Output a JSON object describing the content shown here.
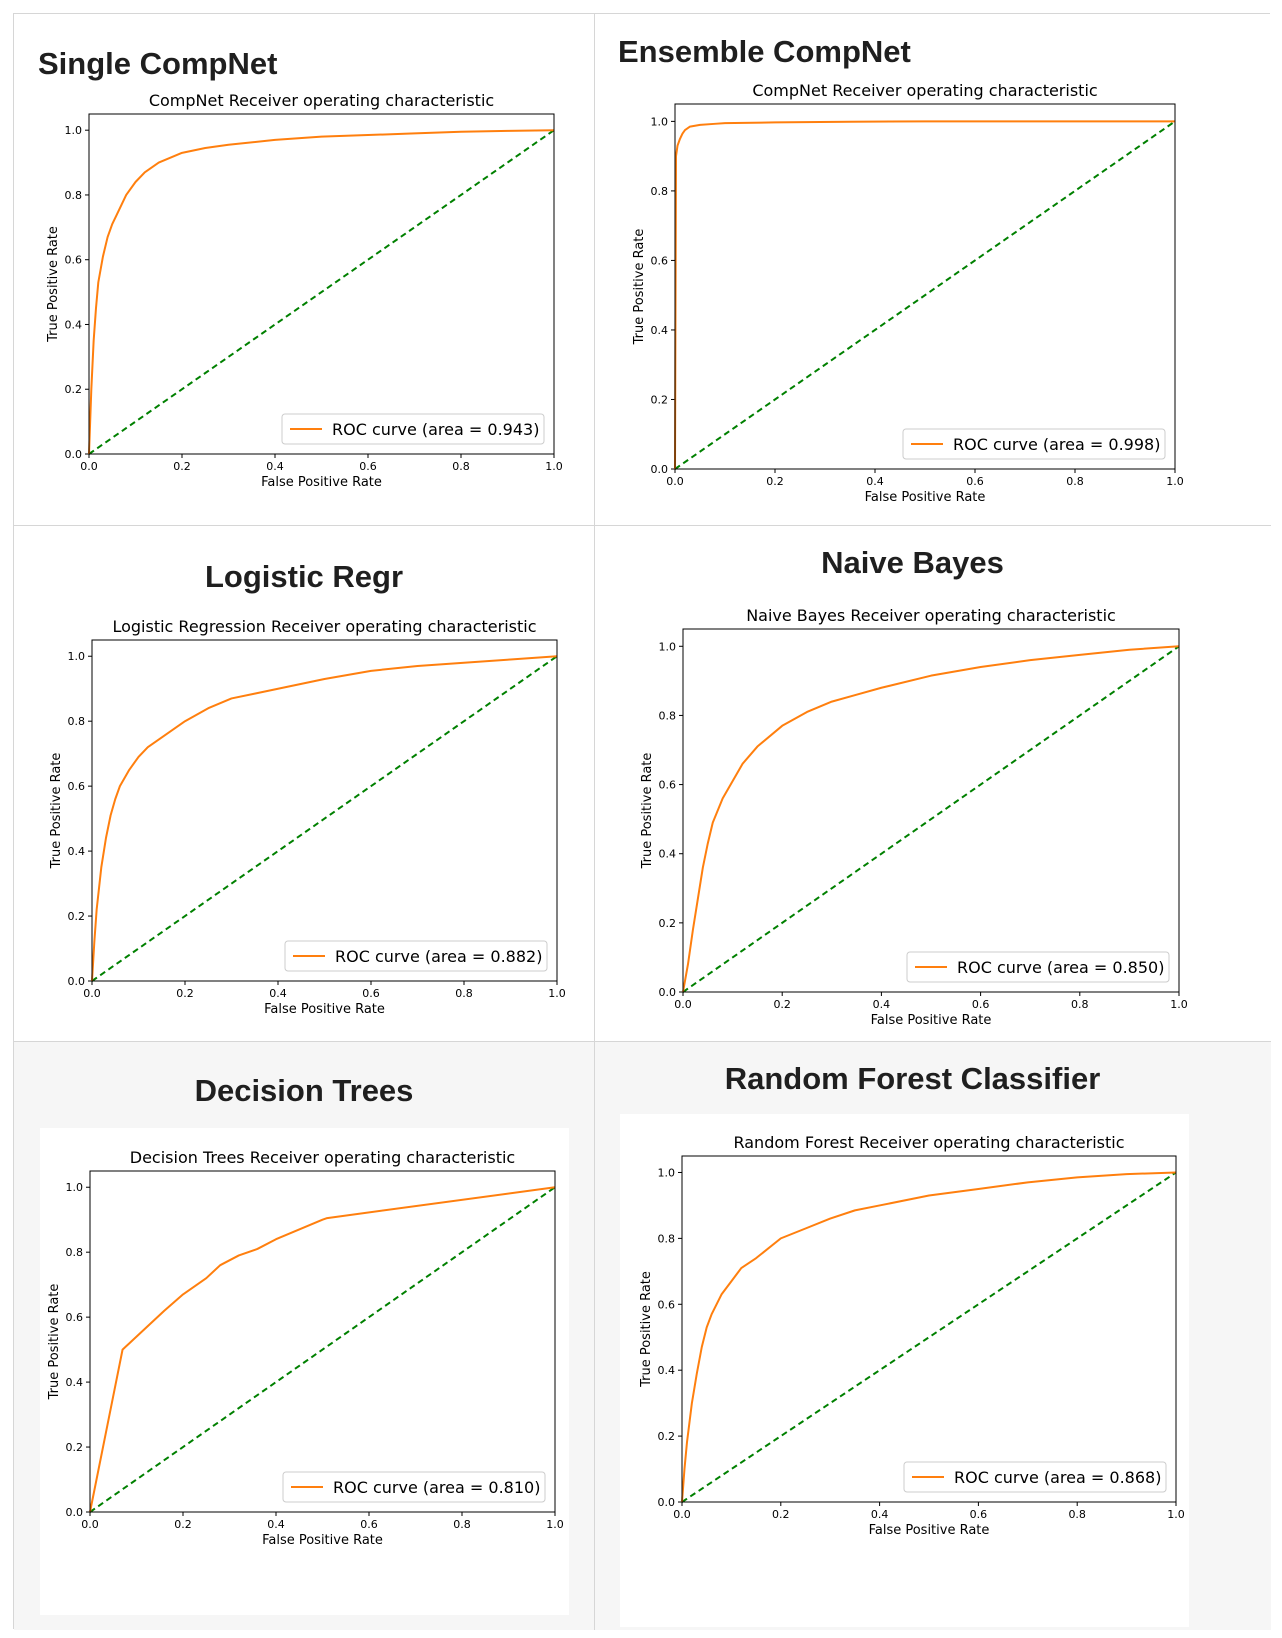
{
  "colors": {
    "roc": "#ff7f0e",
    "diagonal": "#008000",
    "frame": "#000000",
    "legend_border": "#cccccc"
  },
  "panels": [
    {
      "heading": "Single CompNet"
    },
    {
      "heading": "Ensemble CompNet"
    },
    {
      "heading": "Logistic Regr"
    },
    {
      "heading": "Naive Bayes"
    },
    {
      "heading": "Decision Trees"
    },
    {
      "heading": "Random Forest Classifier"
    }
  ],
  "chart_data": [
    {
      "type": "line",
      "title": "CompNet Receiver operating characteristic",
      "xlabel": "False Positive Rate",
      "ylabel": "True Positive Rate",
      "xlim": [
        0,
        1
      ],
      "ylim": [
        0,
        1.05
      ],
      "xticks": [
        "0.0",
        "0.2",
        "0.4",
        "0.6",
        "0.8",
        "1.0"
      ],
      "yticks": [
        "0.0",
        "0.2",
        "0.4",
        "0.6",
        "0.8",
        "1.0"
      ],
      "grid": false,
      "legend_position": "lower-right",
      "series": [
        {
          "name": "ROC curve (area = 0.943)",
          "x": [
            0,
            0.005,
            0.01,
            0.015,
            0.02,
            0.03,
            0.04,
            0.05,
            0.06,
            0.07,
            0.08,
            0.1,
            0.12,
            0.15,
            0.2,
            0.25,
            0.3,
            0.4,
            0.5,
            0.6,
            0.7,
            0.8,
            0.9,
            1.0
          ],
          "y": [
            0,
            0.2,
            0.35,
            0.45,
            0.53,
            0.61,
            0.67,
            0.71,
            0.74,
            0.77,
            0.8,
            0.84,
            0.87,
            0.9,
            0.93,
            0.945,
            0.955,
            0.97,
            0.98,
            0.985,
            0.99,
            0.995,
            0.998,
            1.0
          ]
        },
        {
          "name": "",
          "x": [
            0,
            1
          ],
          "y": [
            0,
            1
          ]
        }
      ]
    },
    {
      "type": "line",
      "title": "CompNet Receiver operating characteristic",
      "xlabel": "False Positive Rate",
      "ylabel": "True Positive Rate",
      "xlim": [
        0,
        1
      ],
      "ylim": [
        0,
        1.05
      ],
      "xticks": [
        "0.0",
        "0.2",
        "0.4",
        "0.6",
        "0.8",
        "1.0"
      ],
      "yticks": [
        "0.0",
        "0.2",
        "0.4",
        "0.6",
        "0.8",
        "1.0"
      ],
      "grid": false,
      "legend_position": "lower-right",
      "series": [
        {
          "name": "ROC curve (area = 0.998)",
          "x": [
            0,
            0.002,
            0.005,
            0.01,
            0.015,
            0.02,
            0.03,
            0.05,
            0.08,
            0.1,
            0.2,
            0.35,
            0.5,
            1.0
          ],
          "y": [
            0,
            0.9,
            0.93,
            0.95,
            0.965,
            0.975,
            0.985,
            0.99,
            0.993,
            0.995,
            0.997,
            0.999,
            1.0,
            1.0
          ]
        },
        {
          "name": "",
          "x": [
            0,
            1
          ],
          "y": [
            0,
            1
          ]
        }
      ]
    },
    {
      "type": "line",
      "title": "Logistic Regression Receiver operating characteristic",
      "xlabel": "False Positive Rate",
      "ylabel": "True Positive Rate",
      "xlim": [
        0,
        1
      ],
      "ylim": [
        0,
        1.05
      ],
      "xticks": [
        "0.0",
        "0.2",
        "0.4",
        "0.6",
        "0.8",
        "1.0"
      ],
      "yticks": [
        "0.0",
        "0.2",
        "0.4",
        "0.6",
        "0.8",
        "1.0"
      ],
      "grid": false,
      "legend_position": "lower-right",
      "series": [
        {
          "name": "ROC curve (area = 0.882)",
          "x": [
            0,
            0.005,
            0.01,
            0.02,
            0.03,
            0.04,
            0.05,
            0.06,
            0.08,
            0.1,
            0.12,
            0.15,
            0.2,
            0.25,
            0.3,
            0.35,
            0.4,
            0.5,
            0.6,
            0.7,
            0.8,
            0.9,
            1.0
          ],
          "y": [
            0,
            0.12,
            0.22,
            0.35,
            0.44,
            0.51,
            0.56,
            0.6,
            0.65,
            0.69,
            0.72,
            0.75,
            0.8,
            0.84,
            0.87,
            0.885,
            0.9,
            0.93,
            0.955,
            0.97,
            0.98,
            0.99,
            1.0
          ]
        },
        {
          "name": "",
          "x": [
            0,
            1
          ],
          "y": [
            0,
            1
          ]
        }
      ]
    },
    {
      "type": "line",
      "title": "Naive Bayes Receiver operating characteristic",
      "xlabel": "False Positive Rate",
      "ylabel": "True Positive Rate",
      "xlim": [
        0,
        1
      ],
      "ylim": [
        0,
        1.05
      ],
      "xticks": [
        "0.0",
        "0.2",
        "0.4",
        "0.6",
        "0.8",
        "1.0"
      ],
      "yticks": [
        "0.0",
        "0.2",
        "0.4",
        "0.6",
        "0.8",
        "1.0"
      ],
      "grid": false,
      "legend_position": "lower-right",
      "series": [
        {
          "name": "ROC curve (area = 0.850)",
          "x": [
            0,
            0.01,
            0.02,
            0.03,
            0.04,
            0.05,
            0.06,
            0.08,
            0.1,
            0.12,
            0.15,
            0.2,
            0.25,
            0.3,
            0.35,
            0.4,
            0.5,
            0.6,
            0.7,
            0.8,
            0.9,
            1.0
          ],
          "y": [
            0,
            0.08,
            0.18,
            0.27,
            0.36,
            0.43,
            0.49,
            0.56,
            0.61,
            0.66,
            0.71,
            0.77,
            0.81,
            0.84,
            0.86,
            0.88,
            0.915,
            0.94,
            0.96,
            0.975,
            0.99,
            1.0
          ]
        },
        {
          "name": "",
          "x": [
            0,
            1
          ],
          "y": [
            0,
            1
          ]
        }
      ]
    },
    {
      "type": "line",
      "title": "Decision Trees Receiver operating characteristic",
      "xlabel": "False Positive Rate",
      "ylabel": "True Positive Rate",
      "xlim": [
        0,
        1
      ],
      "ylim": [
        0,
        1.05
      ],
      "xticks": [
        "0.0",
        "0.2",
        "0.4",
        "0.6",
        "0.8",
        "1.0"
      ],
      "yticks": [
        "0.0",
        "0.2",
        "0.4",
        "0.6",
        "0.8",
        "1.0"
      ],
      "grid": false,
      "legend_position": "lower-right",
      "series": [
        {
          "name": "ROC curve (area = 0.810)",
          "x": [
            0,
            0.07,
            0.1,
            0.13,
            0.16,
            0.2,
            0.25,
            0.28,
            0.32,
            0.36,
            0.4,
            0.45,
            0.5,
            0.51,
            1.0
          ],
          "y": [
            0,
            0.5,
            0.54,
            0.58,
            0.62,
            0.67,
            0.72,
            0.76,
            0.79,
            0.81,
            0.84,
            0.87,
            0.9,
            0.905,
            1.0
          ]
        },
        {
          "name": "",
          "x": [
            0,
            1
          ],
          "y": [
            0,
            1
          ]
        }
      ]
    },
    {
      "type": "line",
      "title": "Random Forest Receiver operating characteristic",
      "xlabel": "False Positive Rate",
      "ylabel": "True Positive Rate",
      "xlim": [
        0,
        1
      ],
      "ylim": [
        0,
        1.05
      ],
      "xticks": [
        "0.0",
        "0.2",
        "0.4",
        "0.6",
        "0.8",
        "1.0"
      ],
      "yticks": [
        "0.0",
        "0.2",
        "0.4",
        "0.6",
        "0.8",
        "1.0"
      ],
      "grid": false,
      "legend_position": "lower-right",
      "series": [
        {
          "name": "ROC curve (area = 0.868)",
          "x": [
            0,
            0.005,
            0.01,
            0.02,
            0.03,
            0.04,
            0.05,
            0.06,
            0.08,
            0.1,
            0.12,
            0.15,
            0.2,
            0.25,
            0.3,
            0.35,
            0.4,
            0.5,
            0.6,
            0.7,
            0.8,
            0.9,
            1.0
          ],
          "y": [
            0,
            0.1,
            0.18,
            0.3,
            0.39,
            0.47,
            0.53,
            0.57,
            0.63,
            0.67,
            0.71,
            0.74,
            0.8,
            0.83,
            0.86,
            0.885,
            0.9,
            0.93,
            0.95,
            0.97,
            0.985,
            0.995,
            1.0
          ]
        },
        {
          "name": "",
          "x": [
            0,
            1
          ],
          "y": [
            0,
            1
          ]
        }
      ]
    }
  ]
}
